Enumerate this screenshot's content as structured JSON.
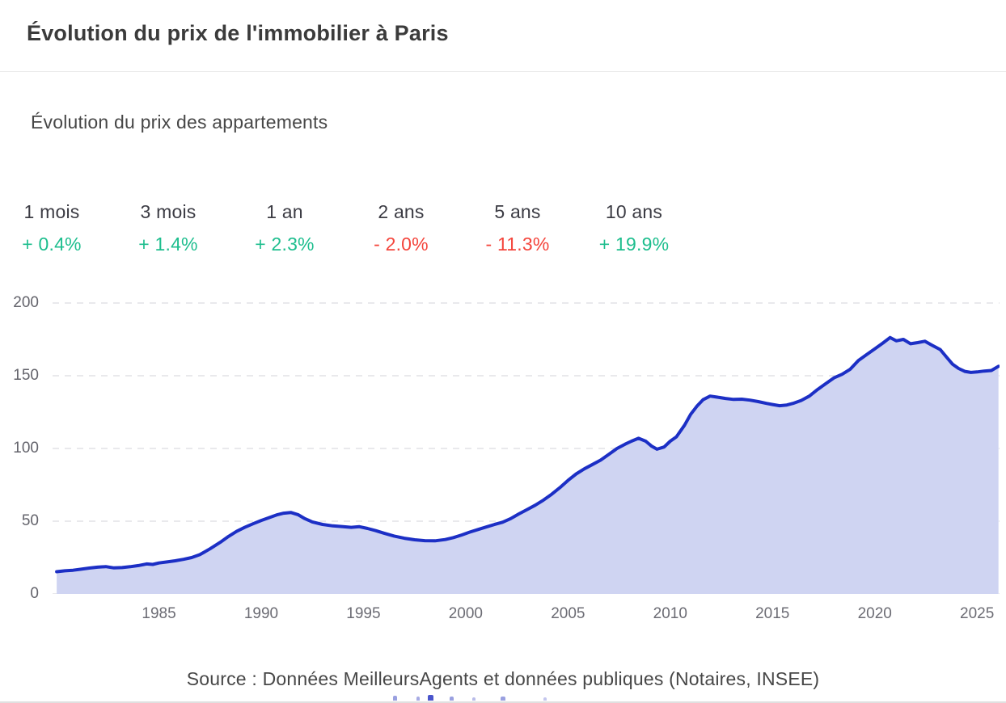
{
  "header": {
    "title": "Évolution du prix de l'immobilier à Paris"
  },
  "chart_section": {
    "subtitle": "Évolution du prix des appartements"
  },
  "stats": {
    "items": [
      {
        "label": "1 mois",
        "value": "+ 0.4%",
        "color": "#1ebe8e"
      },
      {
        "label": "3 mois",
        "value": "+ 1.4%",
        "color": "#1ebe8e"
      },
      {
        "label": "1 an",
        "value": "+ 2.3%",
        "color": "#1ebe8e"
      },
      {
        "label": "2 ans",
        "value": "- 2.0%",
        "color": "#f4453c"
      },
      {
        "label": "5 ans",
        "value": "- 11.3%",
        "color": "#f4453c"
      },
      {
        "label": "10 ans",
        "value": "+ 19.9%",
        "color": "#1ebe8e"
      }
    ]
  },
  "chart_data": {
    "type": "area",
    "title": "Évolution du prix des appartements",
    "xlabel": "",
    "ylabel": "",
    "grid": "dashed-horizontal",
    "legend": "none",
    "line_color": "#1c2fc5",
    "fill_color": "#cfd4f2",
    "ylim": [
      0,
      209
    ],
    "xlim": [
      1979.8,
      2026.1
    ],
    "yticks": [
      0,
      50,
      100,
      150,
      200
    ],
    "xticks": [
      1985,
      1990,
      1995,
      2000,
      2005,
      2010,
      2015,
      2020,
      2025
    ],
    "points": [
      [
        1980.0,
        15.3
      ],
      [
        1980.4,
        15.9
      ],
      [
        1980.8,
        16.3
      ],
      [
        1981.2,
        17.0
      ],
      [
        1981.6,
        17.8
      ],
      [
        1982.0,
        18.4
      ],
      [
        1982.4,
        18.8
      ],
      [
        1982.8,
        17.9
      ],
      [
        1983.2,
        18.1
      ],
      [
        1983.6,
        18.7
      ],
      [
        1984.0,
        19.5
      ],
      [
        1984.4,
        20.6
      ],
      [
        1984.7,
        20.3
      ],
      [
        1985.0,
        21.3
      ],
      [
        1985.4,
        22.0
      ],
      [
        1985.8,
        22.8
      ],
      [
        1986.2,
        23.8
      ],
      [
        1986.6,
        25.0
      ],
      [
        1987.0,
        27.0
      ],
      [
        1987.5,
        31.0
      ],
      [
        1988.0,
        35.5
      ],
      [
        1988.4,
        39.5
      ],
      [
        1988.8,
        43.0
      ],
      [
        1989.2,
        45.8
      ],
      [
        1989.6,
        48.2
      ],
      [
        1990.0,
        50.5
      ],
      [
        1990.4,
        52.5
      ],
      [
        1990.8,
        54.5
      ],
      [
        1991.1,
        55.5
      ],
      [
        1991.45,
        56.0
      ],
      [
        1991.8,
        54.5
      ],
      [
        1992.1,
        52.0
      ],
      [
        1992.5,
        49.5
      ],
      [
        1993.0,
        47.8
      ],
      [
        1993.5,
        46.8
      ],
      [
        1994.0,
        46.2
      ],
      [
        1994.4,
        45.8
      ],
      [
        1994.8,
        46.2
      ],
      [
        1995.2,
        45.0
      ],
      [
        1995.6,
        43.5
      ],
      [
        1996.0,
        41.8
      ],
      [
        1996.5,
        39.8
      ],
      [
        1997.0,
        38.3
      ],
      [
        1997.5,
        37.2
      ],
      [
        1998.0,
        36.6
      ],
      [
        1998.5,
        36.5
      ],
      [
        1999.0,
        37.4
      ],
      [
        1999.4,
        38.7
      ],
      [
        1999.8,
        40.5
      ],
      [
        2000.2,
        42.5
      ],
      [
        2000.6,
        44.3
      ],
      [
        2001.0,
        46.0
      ],
      [
        2001.4,
        47.7
      ],
      [
        2001.8,
        49.3
      ],
      [
        2002.2,
        51.8
      ],
      [
        2002.6,
        55.0
      ],
      [
        2003.0,
        58.0
      ],
      [
        2003.4,
        61.0
      ],
      [
        2003.8,
        64.5
      ],
      [
        2004.2,
        68.5
      ],
      [
        2004.6,
        73.0
      ],
      [
        2005.0,
        78.0
      ],
      [
        2005.4,
        82.5
      ],
      [
        2005.8,
        86.0
      ],
      [
        2006.2,
        89.0
      ],
      [
        2006.6,
        92.0
      ],
      [
        2007.0,
        96.0
      ],
      [
        2007.4,
        100.0
      ],
      [
        2007.8,
        103.0
      ],
      [
        2008.1,
        105.0
      ],
      [
        2008.45,
        107.0
      ],
      [
        2008.8,
        105.0
      ],
      [
        2009.1,
        101.5
      ],
      [
        2009.35,
        99.5
      ],
      [
        2009.7,
        101.0
      ],
      [
        2010.0,
        105.0
      ],
      [
        2010.3,
        108.0
      ],
      [
        2010.7,
        116.0
      ],
      [
        2011.0,
        123.5
      ],
      [
        2011.3,
        129.0
      ],
      [
        2011.6,
        133.5
      ],
      [
        2011.95,
        136.0
      ],
      [
        2012.3,
        135.3
      ],
      [
        2012.7,
        134.4
      ],
      [
        2013.1,
        133.7
      ],
      [
        2013.5,
        133.9
      ],
      [
        2013.9,
        133.2
      ],
      [
        2014.3,
        132.2
      ],
      [
        2014.7,
        131.0
      ],
      [
        2015.0,
        130.2
      ],
      [
        2015.35,
        129.4
      ],
      [
        2015.7,
        129.9
      ],
      [
        2016.0,
        131.0
      ],
      [
        2016.4,
        133.0
      ],
      [
        2016.8,
        136.0
      ],
      [
        2017.2,
        140.5
      ],
      [
        2017.6,
        144.5
      ],
      [
        2018.0,
        148.5
      ],
      [
        2018.4,
        151.0
      ],
      [
        2018.8,
        154.5
      ],
      [
        2019.2,
        160.5
      ],
      [
        2019.6,
        164.5
      ],
      [
        2020.0,
        168.5
      ],
      [
        2020.4,
        172.5
      ],
      [
        2020.75,
        176.3
      ],
      [
        2021.05,
        174.0
      ],
      [
        2021.4,
        175.0
      ],
      [
        2021.75,
        172.0
      ],
      [
        2022.1,
        172.8
      ],
      [
        2022.45,
        173.7
      ],
      [
        2022.8,
        171.0
      ],
      [
        2023.2,
        168.0
      ],
      [
        2023.5,
        163.0
      ],
      [
        2023.8,
        158.0
      ],
      [
        2024.1,
        155.0
      ],
      [
        2024.4,
        153.0
      ],
      [
        2024.7,
        152.3
      ],
      [
        2025.0,
        152.6
      ],
      [
        2025.35,
        153.2
      ],
      [
        2025.7,
        153.6
      ],
      [
        2026.05,
        156.5
      ]
    ]
  },
  "footer": {
    "source": "Source : Données MeilleursAgents et données publiques (Notaires, INSEE)"
  }
}
